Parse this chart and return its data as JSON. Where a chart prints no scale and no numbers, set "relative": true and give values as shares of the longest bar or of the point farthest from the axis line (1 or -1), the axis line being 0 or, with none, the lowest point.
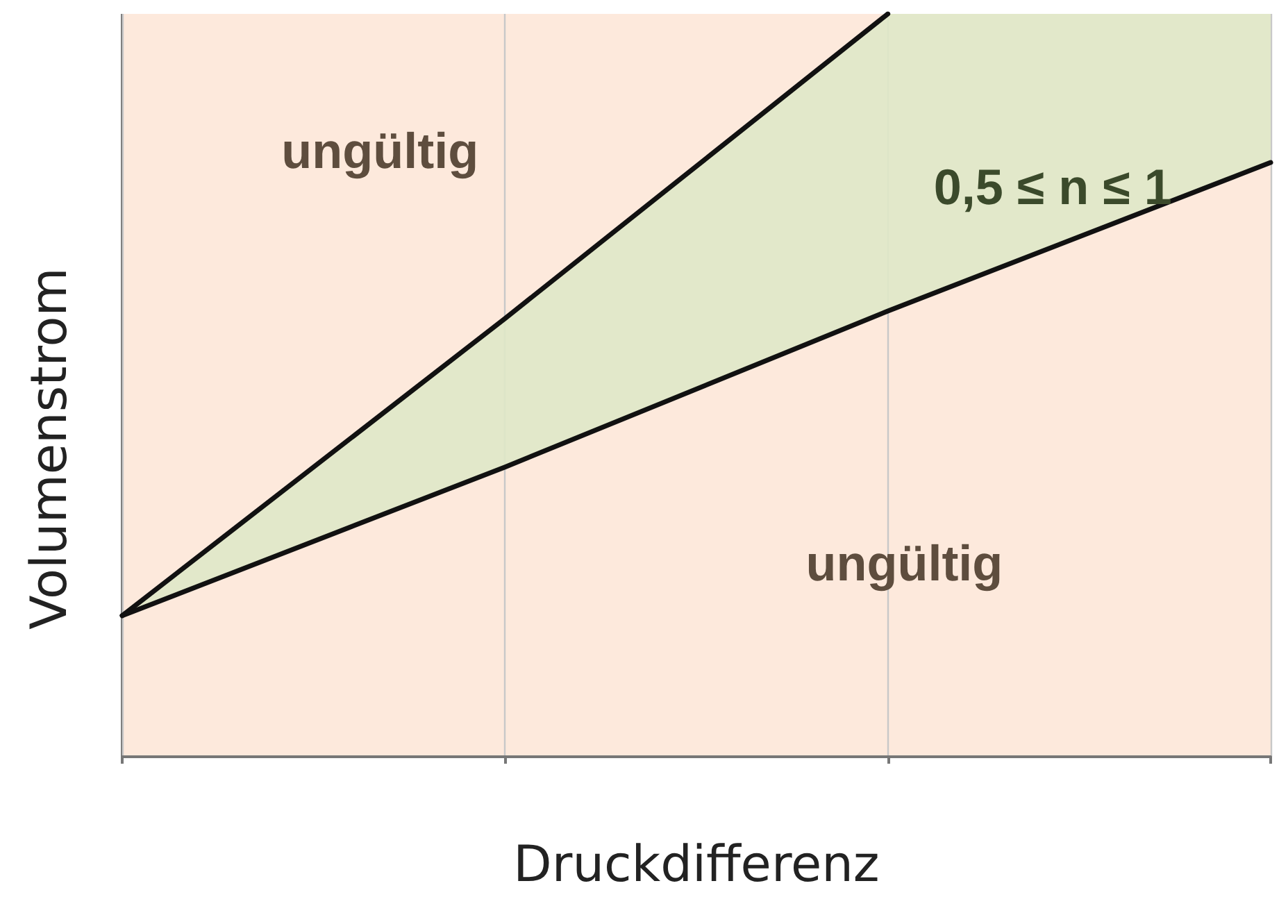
{
  "chart_data": {
    "type": "line",
    "xlabel": "Druckdifferenz",
    "ylabel": "Volumenstrom",
    "relative": true,
    "grid": "x",
    "marker": "none",
    "line_style": "solid",
    "categories": [
      null,
      null,
      null,
      null
    ],
    "series": [
      {
        "color": "#111111",
        "values": [
          0.19,
          0.59,
          1.0,
          null
        ],
        "lower": [
          0.19,
          0.39,
          0.6,
          0.8
        ],
        "upper": [
          0.19,
          0.59,
          1.0,
          1.0
        ]
      },
      {
        "color": "#111111",
        "values": [
          0.19,
          0.39,
          0.6,
          0.8
        ]
      }
    ],
    "annotations": [
      "ungültig",
      "ungültig",
      "0,5 ≤ n ≤ 1"
    ]
  }
}
